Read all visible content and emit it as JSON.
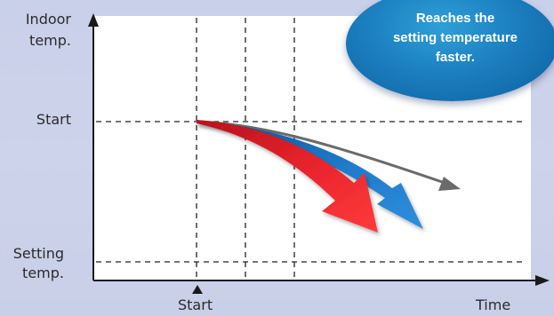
{
  "y_axis": {
    "title_line1": "Indoor",
    "title_line2": "temp.",
    "start_label": "Start",
    "setting_line1": "Setting",
    "setting_line2": "temp."
  },
  "x_axis": {
    "start_label": "Start",
    "end_label": "Time"
  },
  "callout": {
    "text": "Reaches the\nsetting temperature\nfaster."
  },
  "curves": [
    {
      "role": "conventional",
      "color": "#6b6b6b"
    },
    {
      "role": "improved",
      "color": "#1f78c8"
    },
    {
      "role": "fastest",
      "color": "#e8232b"
    }
  ],
  "colors": {
    "background": "#cbd1ea",
    "plot_area": "#ffffff",
    "axis": "#1a1a1a",
    "callout": "#1b7fc0"
  }
}
